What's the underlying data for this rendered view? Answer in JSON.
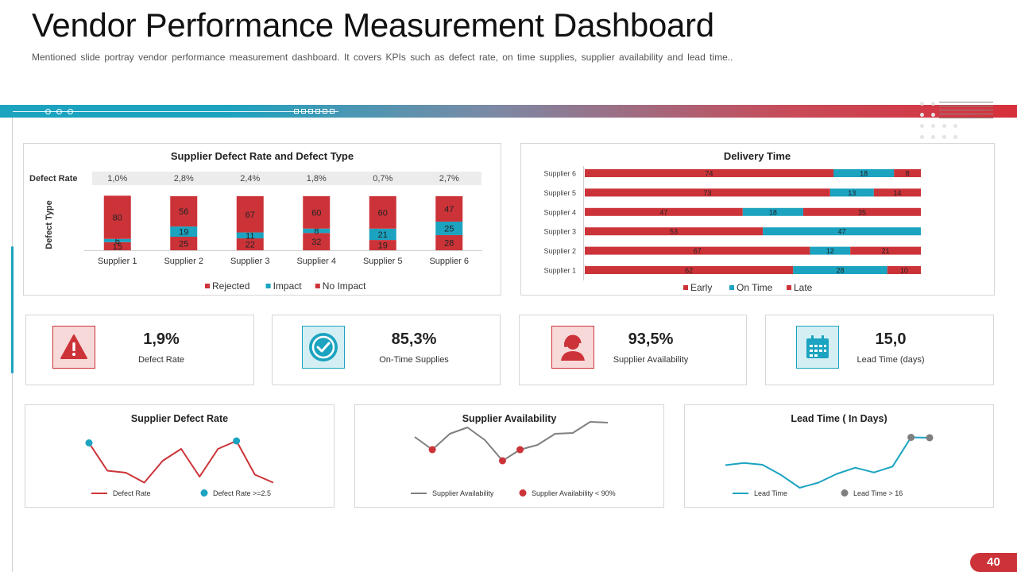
{
  "header": {
    "title": "Vendor Performance Measurement Dashboard",
    "subtitle": "Mentioned slide portray vendor performance measurement dashboard. It covers KPIs such as defect rate, on time supplies, supplier availability and lead time.."
  },
  "colors": {
    "red": "#cc3338",
    "teal": "#1ba3c0",
    "gray": "#7f7f7f"
  },
  "kpis": [
    {
      "value": "1,9%",
      "label": "Defect Rate",
      "icon": "warning-icon"
    },
    {
      "value": "85,3%",
      "label": "On-Time Supplies",
      "icon": "check-badge-icon"
    },
    {
      "value": "93,5%",
      "label": "Supplier Availability",
      "icon": "support-agent-icon"
    },
    {
      "value": "15,0",
      "label": "Lead Time (days)",
      "icon": "calendar-icon"
    }
  ],
  "page": {
    "number": "40"
  },
  "chart_data": [
    {
      "type": "bar",
      "stacked": true,
      "title": "Supplier Defect Rate and Defect Type",
      "ylabel": "Defect Type",
      "row_label": "Defect Rate",
      "defect_rates": [
        "1,0%",
        "2,8%",
        "2,4%",
        "1,8%",
        "0,7%",
        "2,7%"
      ],
      "categories": [
        "Supplier 1",
        "Supplier 2",
        "Supplier 3",
        "Supplier 4",
        "Supplier 5",
        "Supplier 6"
      ],
      "series": [
        {
          "name": "Rejected",
          "values": [
            15,
            25,
            22,
            32,
            19,
            28
          ],
          "color": "#cc3338"
        },
        {
          "name": "Impact",
          "values": [
            6,
            19,
            11,
            8,
            21,
            25
          ],
          "color": "#1ba3c0"
        },
        {
          "name": "No Impact",
          "values": [
            80,
            56,
            67,
            60,
            60,
            47
          ],
          "color": "#cc3338"
        }
      ]
    },
    {
      "type": "bar",
      "orientation": "horizontal",
      "stacked": true,
      "title": "Delivery Time",
      "categories": [
        "Supplier 6",
        "Supplier 5",
        "Supplier 4",
        "Supplier 3",
        "Supplier 2",
        "Supplier 1"
      ],
      "series": [
        {
          "name": "Early",
          "values": [
            74,
            73,
            47,
            53,
            67,
            62
          ],
          "color": "#cc3338"
        },
        {
          "name": "On Time",
          "values": [
            18,
            13,
            18,
            47,
            12,
            28
          ],
          "color": "#1ba3c0"
        },
        {
          "name": "Late",
          "values": [
            8,
            14,
            35,
            0,
            21,
            10
          ],
          "color": "#cc3338"
        }
      ]
    },
    {
      "type": "line",
      "title": "Supplier Defect Rate",
      "ylim": [
        0,
        4
      ],
      "series": [
        {
          "name": "Defect Rate",
          "values": [
            2.9,
            1.5,
            1.4,
            0.9,
            2.0,
            2.6,
            1.2,
            2.6,
            3.0,
            1.3,
            0.9
          ],
          "color": "#cc3338"
        }
      ],
      "markers": {
        "name": "Defect Rate >=2.5",
        "indices": [
          0,
          8
        ],
        "color": "#1ba3c0"
      }
    },
    {
      "type": "line",
      "title": "Supplier Availability",
      "ylim": [
        0,
        100
      ],
      "series": [
        {
          "name": "Supplier Availability",
          "values": [
            68,
            52,
            72,
            80,
            64,
            38,
            52,
            58,
            72,
            73,
            87,
            86
          ],
          "color": "#7f7f7f"
        }
      ],
      "markers": {
        "name": "Supplier Availability < 90%",
        "indices": [
          1,
          5,
          6
        ],
        "color": "#cc3338"
      }
    },
    {
      "type": "line",
      "title": "Lead Time ( In Days)",
      "ylim": [
        0,
        25
      ],
      "series": [
        {
          "name": "Lead Time",
          "values": [
            11.2,
            11.8,
            11.3,
            8.5,
            5.0,
            6.4,
            8.8,
            10.5,
            9.2,
            10.8,
            18.8,
            18.7
          ],
          "color": "#1ba3c0"
        }
      ],
      "markers": {
        "name": "Lead Time > 16",
        "indices": [
          10,
          11
        ],
        "color": "#7f7f7f"
      }
    }
  ]
}
